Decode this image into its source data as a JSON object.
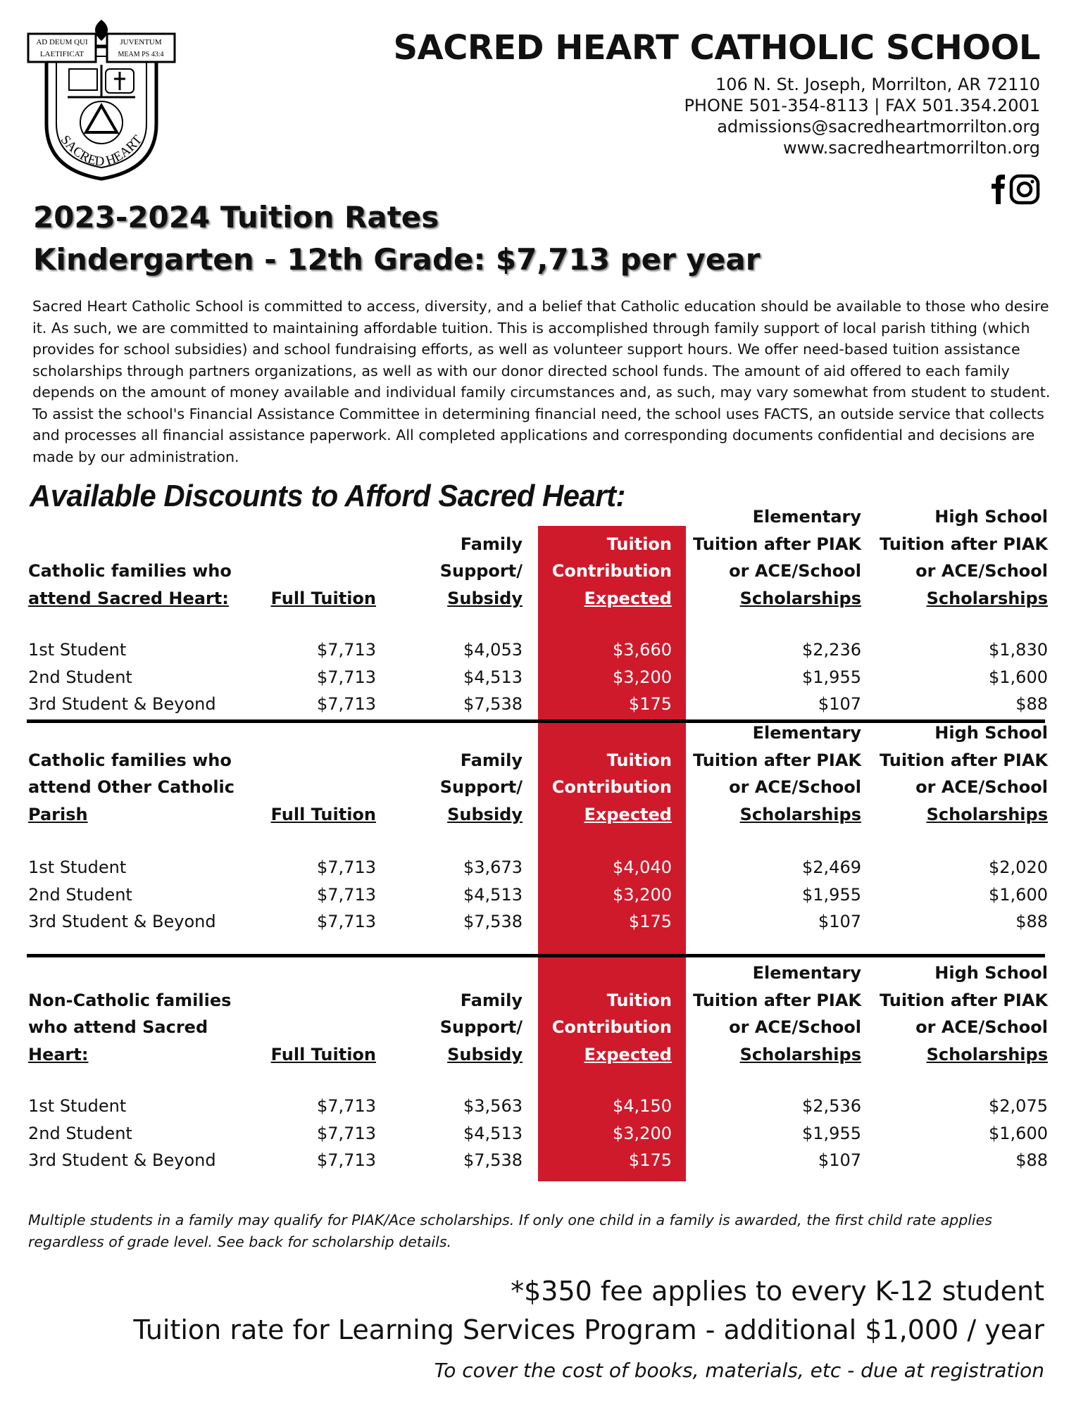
{
  "logo": {
    "motto_top_left": "AD DEUM QUI",
    "motto_top_right": "JUVENTUM",
    "motto_bottom_left": "LAETIFICAT",
    "motto_bottom_right": "MEAM PS 43:4",
    "name": "SACRED HEART"
  },
  "header": {
    "title": "SACRED HEART CATHOLIC SCHOOL",
    "address": "106 N. St. Joseph, Morrilton, AR 72110",
    "phone": "PHONE 501-354-8113 | FAX 501.354.2001",
    "email": "admissions@sacredheartmorrilton.org",
    "website": "www.sacredheartmorrilton.org"
  },
  "rates": {
    "title": "2023-2024 Tuition Rates",
    "subtitle": "Kindergarten - 12th Grade: $7,713 per year"
  },
  "intro": "Sacred Heart Catholic School is committed to access, diversity, and a belief that Catholic education should be available to those who desire it. As such, we are committed to maintaining affordable tuition. This is accomplished through family support of local parish tithing (which provides for school subsidies) and school fundraising efforts, as well as volunteer support hours. We offer need-based tuition assistance scholarships through partners organizations, as well as with our donor directed school funds. The amount of aid offered to each family depends on the amount of money available and individual family circumstances and, as such, may vary somewhat from student to student. To assist the school's Financial Assistance Committee in determining financial need, the school uses FACTS, an outside service that collects and processes all financial assistance paperwork. All completed applications and corresponding documents confidential and decisions are made by our administration.",
  "discounts": {
    "title": "Available Discounts to Afford Sacred Heart:",
    "sections": [
      {
        "label": [
          "Catholic families who",
          "attend Sacred Heart:"
        ],
        "columns": [
          [
            "Full Tuition"
          ],
          [
            "Family",
            "Support/",
            "Subsidy"
          ],
          [
            "Tuition",
            "Contribution",
            "Expected"
          ],
          [
            "Elementary",
            "Tuition after PIAK",
            "or ACE/School",
            "Scholarships"
          ],
          [
            "High School",
            "Tuition after PIAK",
            "or ACE/School",
            "Scholarships"
          ]
        ],
        "rows": [
          {
            "label": "1st Student",
            "values": [
              "$7,713",
              "$4,053",
              "$3,660",
              "$2,236",
              "$1,830"
            ]
          },
          {
            "label": "2nd Student",
            "values": [
              "$7,713",
              "$4,513",
              "$3,200",
              "$1,955",
              "$1,600"
            ]
          },
          {
            "label": "3rd Student & Beyond",
            "values": [
              "$7,713",
              "$7,538",
              "$175",
              "$107",
              "$88"
            ]
          }
        ]
      },
      {
        "label": [
          "Catholic families who",
          "attend Other Catholic",
          "Parish"
        ],
        "columns": [
          [
            "Full Tuition"
          ],
          [
            "Family",
            "Support/",
            "Subsidy"
          ],
          [
            "Tuition",
            "Contribution",
            "Expected"
          ],
          [
            "Elementary",
            "Tuition after PIAK",
            "or ACE/School",
            "Scholarships"
          ],
          [
            "High School",
            "Tuition after PIAK",
            "or ACE/School",
            "Scholarships"
          ]
        ],
        "rows": [
          {
            "label": "1st Student",
            "values": [
              "$7,713",
              "$3,673",
              "$4,040",
              "$2,469",
              "$2,020"
            ]
          },
          {
            "label": "2nd Student",
            "values": [
              "$7,713",
              "$4,513",
              "$3,200",
              "$1,955",
              "$1,600"
            ]
          },
          {
            "label": "3rd Student & Beyond",
            "values": [
              "$7,713",
              "$7,538",
              "$175",
              "$107",
              "$88"
            ]
          }
        ]
      },
      {
        "label": [
          "Non-Catholic families",
          "who attend Sacred",
          "Heart:"
        ],
        "columns": [
          [
            "Full Tuition"
          ],
          [
            "Family",
            "Support/",
            "Subsidy"
          ],
          [
            "Tuition",
            "Contribution",
            "Expected"
          ],
          [
            "Elementary",
            "Tuition after PIAK",
            "or ACE/School",
            "Scholarships"
          ],
          [
            "High School",
            "Tuition after PIAK",
            "or ACE/School",
            "Scholarships"
          ]
        ],
        "rows": [
          {
            "label": "1st Student",
            "values": [
              "$7,713",
              "$3,563",
              "$4,150",
              "$2,536",
              "$2,075"
            ]
          },
          {
            "label": "2nd Student",
            "values": [
              "$7,713",
              "$4,513",
              "$3,200",
              "$1,955",
              "$1,600"
            ]
          },
          {
            "label": "3rd Student & Beyond",
            "values": [
              "$7,713",
              "$7,538",
              "$175",
              "$107",
              "$88"
            ]
          }
        ]
      }
    ]
  },
  "note": "Multiple students in a family may qualify for PIAK/Ace scholarships. If only one child in a family is awarded, the first child rate applies regardless of grade level. See back for scholarship details.",
  "fees": {
    "fee": "*$350 fee applies to every K-12 student",
    "learning": "Tuition rate for Learning Services Program - additional $1,000 / year",
    "learning_note": "To cover the cost of books, materials, etc - due at registration"
  }
}
